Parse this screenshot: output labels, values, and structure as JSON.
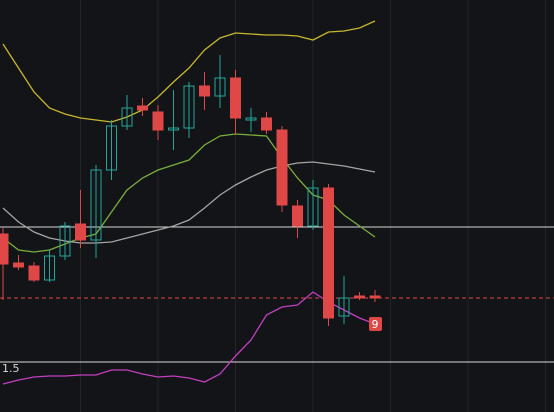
{
  "chart_data": {
    "type": "candlestick",
    "ylim": [
      0,
      412
    ],
    "up_color": "#26a69a",
    "down_color": "#e04848",
    "open": [
      178,
      149,
      146,
      132,
      156,
      188,
      172,
      242,
      286,
      306,
      300,
      282,
      284,
      326,
      316,
      334,
      292,
      294,
      282,
      206,
      186,
      224,
      96,
      116,
      116
    ],
    "close": [
      148,
      145,
      132,
      156,
      186,
      172,
      242,
      286,
      304,
      302,
      282,
      284,
      326,
      316,
      334,
      294,
      294,
      282,
      207,
      186,
      224,
      94,
      114,
      114,
      114
    ],
    "high": [
      184,
      157,
      150,
      162,
      190,
      222,
      247,
      292,
      317,
      314,
      307,
      322,
      330,
      340,
      357,
      342,
      304,
      300,
      286,
      212,
      232,
      228,
      136,
      120,
      122
    ],
    "low": [
      112,
      142,
      130,
      130,
      152,
      164,
      154,
      232,
      282,
      296,
      272,
      262,
      274,
      302,
      304,
      278,
      280,
      278,
      200,
      174,
      182,
      86,
      88,
      112,
      110
    ],
    "lines": [
      {
        "color": "#c8b630",
        "values": [
          368,
          344,
          320,
          304,
          298,
          294,
          292,
          290,
          295,
          302,
          315,
          330,
          344,
          362,
          374,
          379,
          378,
          377,
          377,
          376,
          372,
          380,
          381,
          384,
          391
        ]
      },
      {
        "color": "#7aae3c",
        "values": [
          174,
          162,
          160,
          162,
          168,
          174,
          178,
          200,
          222,
          234,
          242,
          247,
          252,
          267,
          276,
          278,
          277,
          276,
          254,
          234,
          217,
          212,
          197,
          186,
          175
        ]
      },
      {
        "color": "#a4a4a4",
        "values": [
          204,
          190,
          180,
          174,
          171,
          169,
          169,
          170,
          174,
          178,
          182,
          186,
          192,
          204,
          217,
          227,
          235,
          242,
          246,
          249,
          250,
          248,
          246,
          243,
          240
        ]
      },
      {
        "color": "#c23fbf",
        "values": [
          28,
          32,
          35,
          36,
          36,
          37,
          37,
          42,
          42,
          38,
          35,
          36,
          34,
          30,
          38,
          56,
          72,
          97,
          105,
          107,
          120,
          110,
          102,
          94,
          88
        ]
      }
    ],
    "levels": [
      {
        "value": 185,
        "color": "#d8d8d8",
        "dashed": false
      },
      {
        "value": 114,
        "color": "#e04848",
        "dashed": true
      },
      {
        "value": 50,
        "color": "#d8d8d8",
        "dashed": false
      }
    ],
    "annotations": [
      "1.5",
      "9"
    ]
  }
}
